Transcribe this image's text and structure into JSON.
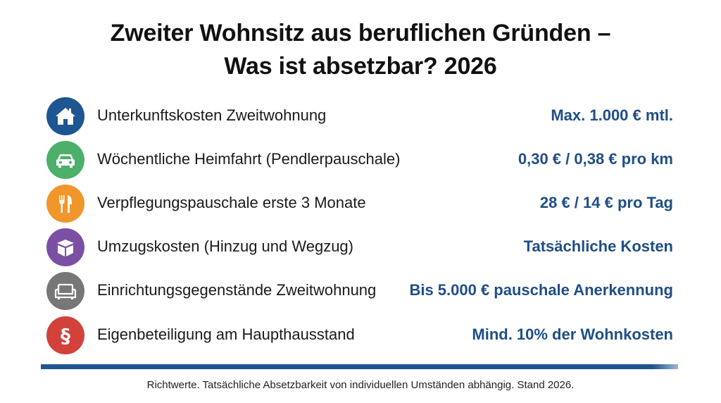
{
  "title": {
    "line1": "Zweiter Wohnsitz aus beruflichen Gründen –",
    "line2": "Was ist absetzbar? 2026"
  },
  "items": [
    {
      "icon": "house-icon",
      "color": "#1f5592",
      "label": "Unterkunftskosten Zweitwohnung",
      "value": "Max. 1.000 € mtl."
    },
    {
      "icon": "car-icon",
      "color": "#4caf6a",
      "label": "Wöchentliche Heimfahrt (Pendlerpauschale)",
      "value": "0,30 € / 0,38 € pro km"
    },
    {
      "icon": "fork-knife-icon",
      "color": "#f0962a",
      "label": "Verpflegungspauschale erste 3 Monate",
      "value": "28 € / 14 € pro Tag"
    },
    {
      "icon": "box-icon",
      "color": "#7b4fa3",
      "label": "Umzugskosten (Hinzug und Wegzug)",
      "value": "Tatsächliche Kosten"
    },
    {
      "icon": "armchair-icon",
      "color": "#777777",
      "label": "Einrichtungsgegenstände Zweitwohnung",
      "value": "Bis 5.000 € pauschale Anerkennung"
    },
    {
      "icon": "paragraph-icon",
      "color": "#d2413a",
      "label": "Eigenbeteiligung am Haupthausstand",
      "value": "Mind. 10% der Wohnkosten"
    }
  ],
  "footer": "Richtwerte. Tatsächliche Absetzbarkeit von individuellen Umständen abhängig. Stand 2026.",
  "accent_color": "#1f4e86"
}
